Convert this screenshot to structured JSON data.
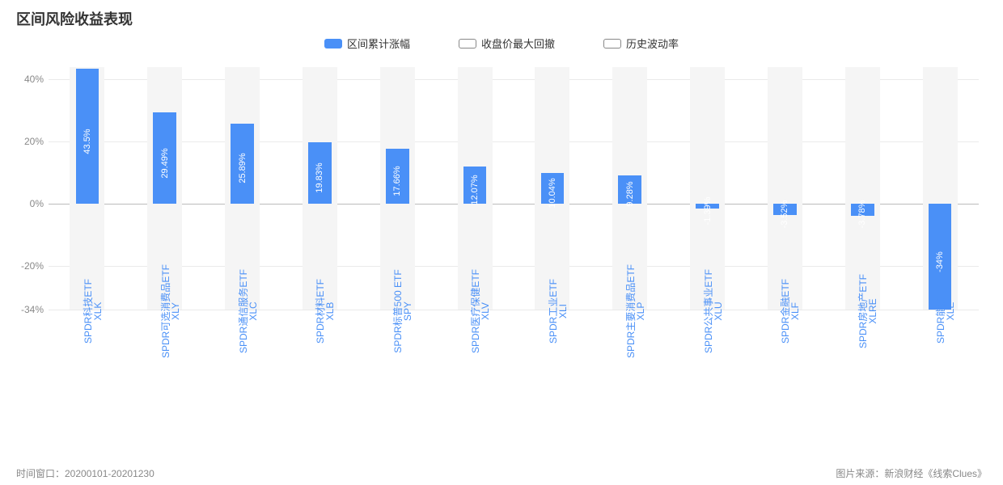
{
  "title": "区间风险收益表现",
  "legend": [
    {
      "label": "区间累计涨幅",
      "active": true
    },
    {
      "label": "收盘价最大回撤",
      "active": false
    },
    {
      "label": "历史波动率",
      "active": false
    }
  ],
  "chart": {
    "type": "bar",
    "ylim": [
      -34,
      44
    ],
    "y_ticks": [
      -34,
      -20,
      0,
      20,
      40
    ],
    "y_tick_labels": [
      "-34%",
      "-20%",
      "0%",
      "20%",
      "40%"
    ],
    "axis_fontsize": 12,
    "axis_color": "#888888",
    "grid_color": "#eaeaea",
    "zero_line_color": "#bbbbbb",
    "band_bg_color": "#f5f5f5",
    "bar_color": "#4a90f7",
    "bar_label_fontsize": 11,
    "bar_label_color": "#ffffff",
    "x_label_color": "#4a90f7",
    "x_label_fontsize": 12,
    "categories": [
      {
        "ticker": "XLK",
        "name": "SPDR科技ETF",
        "value": 43.5,
        "label": "43.5%"
      },
      {
        "ticker": "XLY",
        "name": "SPDR可选消费品ETF",
        "value": 29.49,
        "label": "29.49%"
      },
      {
        "ticker": "XLC",
        "name": "SPDR通信服务ETF",
        "value": 25.89,
        "label": "25.89%"
      },
      {
        "ticker": "XLB",
        "name": "SPDR材料ETF",
        "value": 19.83,
        "label": "19.83%"
      },
      {
        "ticker": "SPY",
        "name": "SPDR标普500 ETF",
        "value": 17.66,
        "label": "17.66%"
      },
      {
        "ticker": "XLV",
        "name": "SPDR医疗保健ETF",
        "value": 12.07,
        "label": "12.07%"
      },
      {
        "ticker": "XLI",
        "name": "SPDR工业ETF",
        "value": 10.04,
        "label": "10.04%"
      },
      {
        "ticker": "XLP",
        "name": "SPDR主要消费品ETF",
        "value": 9.28,
        "label": "9.28%"
      },
      {
        "ticker": "XLU",
        "name": "SPDR公共事业ETF",
        "value": -1.39,
        "label": "-1.39%"
      },
      {
        "ticker": "XLF",
        "name": "SPDR金融ETF",
        "value": -3.52,
        "label": "-3.52%"
      },
      {
        "ticker": "XLRE",
        "name": "SPDR房地产ETF",
        "value": -3.78,
        "label": "-3.78%"
      },
      {
        "ticker": "XLE",
        "name": "SPDR能源ETF",
        "value": -34,
        "label": "-34%"
      }
    ]
  },
  "footer": {
    "left": "时间窗口：20200101-20201230",
    "right": "图片来源：新浪财经《线索Clues》"
  }
}
